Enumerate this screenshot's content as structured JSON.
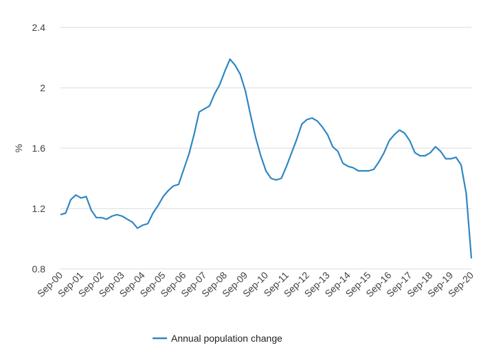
{
  "chart_data": {
    "type": "line",
    "title": "",
    "xlabel": "",
    "ylabel": "%",
    "ylim": [
      0.8,
      2.4
    ],
    "yticks": [
      "0.8",
      "1.2",
      "1.6",
      "2",
      "2.4"
    ],
    "xticks": [
      "Sep-00",
      "Sep-01",
      "Sep-02",
      "Sep-03",
      "Sep-04",
      "Sep-05",
      "Sep-06",
      "Sep-07",
      "Sep-08",
      "Sep-09",
      "Sep-10",
      "Sep-11",
      "Sep-12",
      "Sep-13",
      "Sep-14",
      "Sep-15",
      "Sep-16",
      "Sep-17",
      "Sep-18",
      "Sep-19",
      "Sep-20"
    ],
    "grid": true,
    "legend_position": "bottom",
    "series": [
      {
        "name": "Annual population change",
        "color": "#2e86c1",
        "x": [
          "Sep-00",
          "Dec-00",
          "Mar-01",
          "Jun-01",
          "Sep-01",
          "Dec-01",
          "Mar-02",
          "Jun-02",
          "Sep-02",
          "Dec-02",
          "Mar-03",
          "Jun-03",
          "Sep-03",
          "Dec-03",
          "Mar-04",
          "Jun-04",
          "Sep-04",
          "Dec-04",
          "Mar-05",
          "Jun-05",
          "Sep-05",
          "Dec-05",
          "Mar-06",
          "Jun-06",
          "Sep-06",
          "Dec-06",
          "Mar-07",
          "Jun-07",
          "Sep-07",
          "Dec-07",
          "Mar-08",
          "Jun-08",
          "Sep-08",
          "Dec-08",
          "Mar-09",
          "Jun-09",
          "Sep-09",
          "Dec-09",
          "Mar-10",
          "Jun-10",
          "Sep-10",
          "Dec-10",
          "Mar-11",
          "Jun-11",
          "Sep-11",
          "Dec-11",
          "Mar-12",
          "Jun-12",
          "Sep-12",
          "Dec-12",
          "Mar-13",
          "Jun-13",
          "Sep-13",
          "Dec-13",
          "Mar-14",
          "Jun-14",
          "Sep-14",
          "Dec-14",
          "Mar-15",
          "Jun-15",
          "Sep-15",
          "Dec-15",
          "Mar-16",
          "Jun-16",
          "Sep-16",
          "Dec-16",
          "Mar-17",
          "Jun-17",
          "Sep-17",
          "Dec-17",
          "Mar-18",
          "Jun-18",
          "Sep-18",
          "Dec-18",
          "Mar-19",
          "Jun-19",
          "Sep-19",
          "Dec-19",
          "Mar-20",
          "Jun-20",
          "Sep-20"
        ],
        "values": [
          1.16,
          1.17,
          1.26,
          1.29,
          1.27,
          1.28,
          1.19,
          1.14,
          1.14,
          1.13,
          1.15,
          1.16,
          1.15,
          1.13,
          1.11,
          1.07,
          1.09,
          1.1,
          1.17,
          1.22,
          1.28,
          1.32,
          1.35,
          1.36,
          1.46,
          1.56,
          1.69,
          1.84,
          1.86,
          1.88,
          1.96,
          2.02,
          2.11,
          2.19,
          2.15,
          2.09,
          1.98,
          1.82,
          1.67,
          1.55,
          1.45,
          1.4,
          1.39,
          1.4,
          1.48,
          1.57,
          1.66,
          1.76,
          1.79,
          1.8,
          1.78,
          1.74,
          1.69,
          1.61,
          1.58,
          1.5,
          1.48,
          1.47,
          1.45,
          1.45,
          1.45,
          1.46,
          1.51,
          1.57,
          1.65,
          1.69,
          1.72,
          1.7,
          1.65,
          1.57,
          1.55,
          1.55,
          1.57,
          1.61,
          1.58,
          1.53,
          1.53,
          1.54,
          1.49,
          1.3,
          0.87
        ]
      }
    ]
  }
}
